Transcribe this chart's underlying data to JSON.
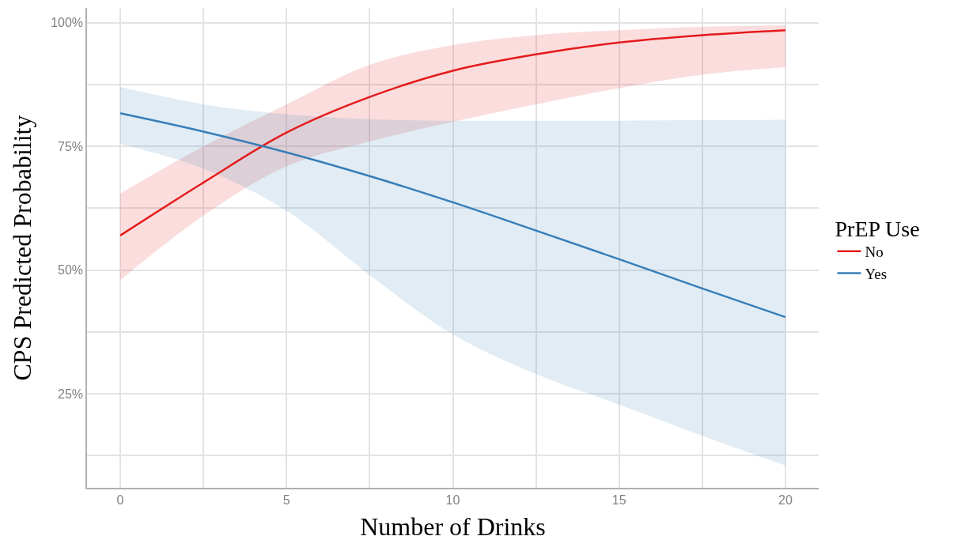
{
  "chart_data": {
    "type": "line",
    "xlabel": "Number of Drinks",
    "ylabel": "CPS Predicted Probability",
    "legend_title": "PrEP Use",
    "x": [
      0,
      2.5,
      5,
      7.5,
      10,
      12.5,
      15,
      17.5,
      20
    ],
    "series": [
      {
        "name": "No",
        "color": "#e41a1c",
        "values": [
          57,
          67.7,
          77.8,
          85,
          90.3,
          93.6,
          96,
          97.5,
          98.5
        ],
        "lower": [
          48,
          61,
          71,
          76,
          80,
          83.5,
          86.8,
          89.5,
          91
        ],
        "upper": [
          65.5,
          75,
          83.5,
          91.5,
          95.5,
          97.5,
          98.5,
          99.2,
          99.5
        ]
      },
      {
        "name": "Yes",
        "color": "#377eb8",
        "values": [
          81.7,
          78,
          73.8,
          69,
          63.7,
          58,
          52.2,
          46.3,
          40.5
        ],
        "lower": [
          75.5,
          70.5,
          62,
          49,
          37,
          29,
          22.8,
          16.5,
          10.5
        ],
        "upper": [
          87,
          83.5,
          81.5,
          80.5,
          80.2,
          80.2,
          80.2,
          80.3,
          80.4
        ]
      }
    ],
    "xlim": [
      -1,
      21
    ],
    "ylim": [
      6,
      103
    ],
    "xticks": [
      0,
      {
        "value": 2.5,
        "label": null
      },
      5,
      {
        "value": 7.5,
        "label": null
      },
      10,
      {
        "value": 12.5,
        "label": null
      },
      15,
      {
        "value": 17.5,
        "label": null
      },
      20
    ],
    "yticks": [
      {
        "value": 12.5,
        "label": null
      },
      {
        "value": 25,
        "label": "25%"
      },
      {
        "value": 37.5,
        "label": null
      },
      {
        "value": 50,
        "label": "50%"
      },
      {
        "value": 62.5,
        "label": null
      },
      {
        "value": 75,
        "label": "75%"
      },
      {
        "value": 87.5,
        "label": null
      },
      {
        "value": 100,
        "label": "100%"
      }
    ],
    "grid": true,
    "legend": "right",
    "line_style": "solid"
  }
}
